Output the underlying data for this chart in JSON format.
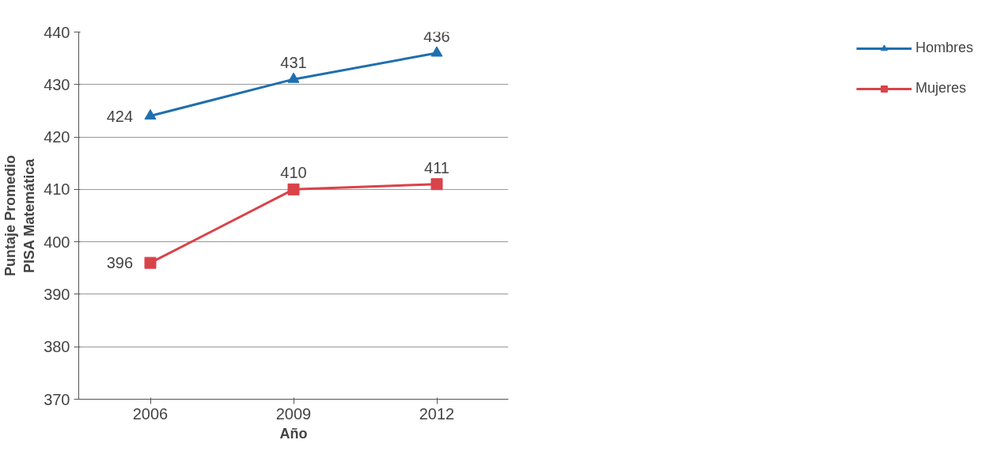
{
  "chart_data": {
    "type": "line",
    "xlabel": "Año",
    "ylabel": "Puntaje Promedio\nPISA Matemática",
    "categories": [
      "2006",
      "2009",
      "2012"
    ],
    "series": [
      {
        "name": "Hombres",
        "color": "#1f6fae",
        "values": [
          424,
          431,
          436
        ],
        "marker": "triangle"
      },
      {
        "name": "Mujeres",
        "color": "#d9434a",
        "values": [
          396,
          410,
          411
        ],
        "marker": "square"
      }
    ],
    "ylim": [
      370,
      440
    ],
    "yticks": [
      370,
      380,
      390,
      400,
      410,
      420,
      430,
      440
    ],
    "grid": "y",
    "legend": "right",
    "data_labels": true
  }
}
